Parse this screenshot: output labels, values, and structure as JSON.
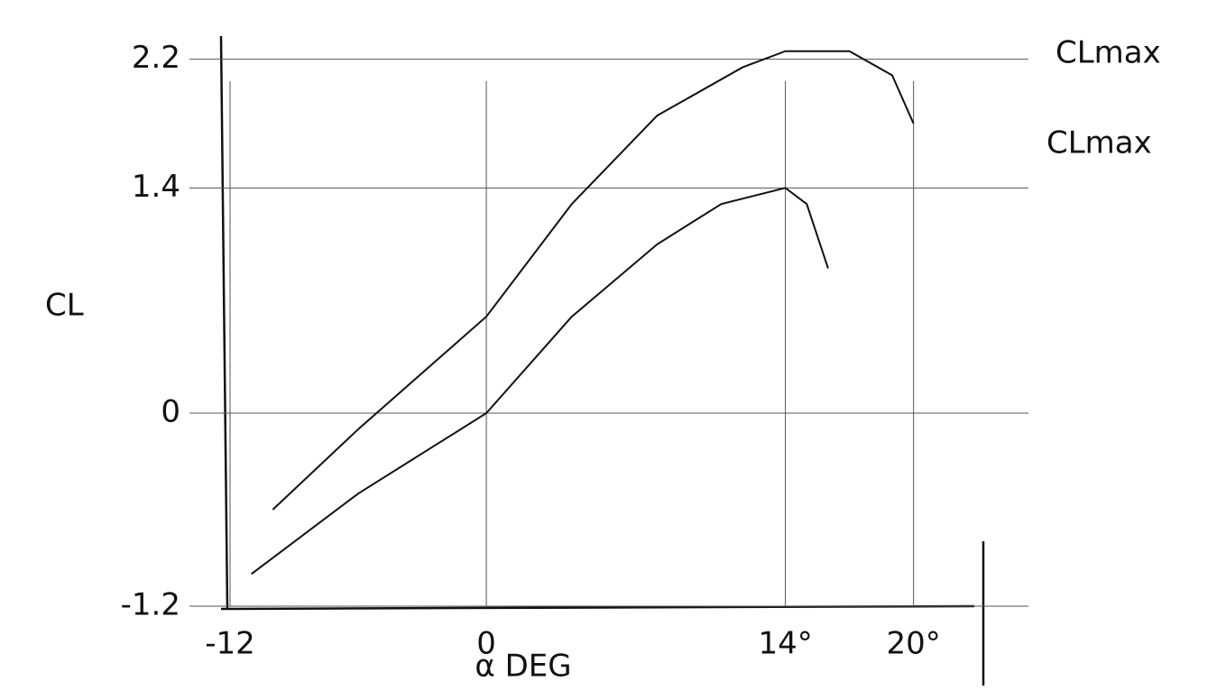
{
  "chart_data": {
    "type": "line",
    "y_label": "CL",
    "x_label": "α DEG",
    "xlim": [
      -12,
      22
    ],
    "ylim": [
      -1.2,
      2.4
    ],
    "xticks": [
      -12,
      0,
      {
        "value": 14,
        "label": "14°"
      },
      {
        "value": 20,
        "label": "20°"
      }
    ],
    "yticks": [
      -1.2,
      0,
      1.4,
      2.2
    ],
    "grid": true,
    "annotations": [
      "CLmax",
      "CLmax"
    ],
    "series": [
      {
        "color": "#111111",
        "x": [
          -10,
          -6,
          -3,
          0,
          4,
          8,
          12,
          14,
          17,
          19,
          20
        ],
        "values": [
          -0.6,
          -0.1,
          0.25,
          0.6,
          1.3,
          1.85,
          2.15,
          2.25,
          2.25,
          2.1,
          1.8
        ]
      },
      {
        "color": "#111111",
        "x": [
          -11,
          -6,
          -3,
          0,
          4,
          8,
          11,
          14,
          15,
          16
        ],
        "values": [
          -1.0,
          -0.5,
          -0.25,
          0,
          0.6,
          1.05,
          1.3,
          1.4,
          1.3,
          0.9
        ]
      }
    ]
  }
}
